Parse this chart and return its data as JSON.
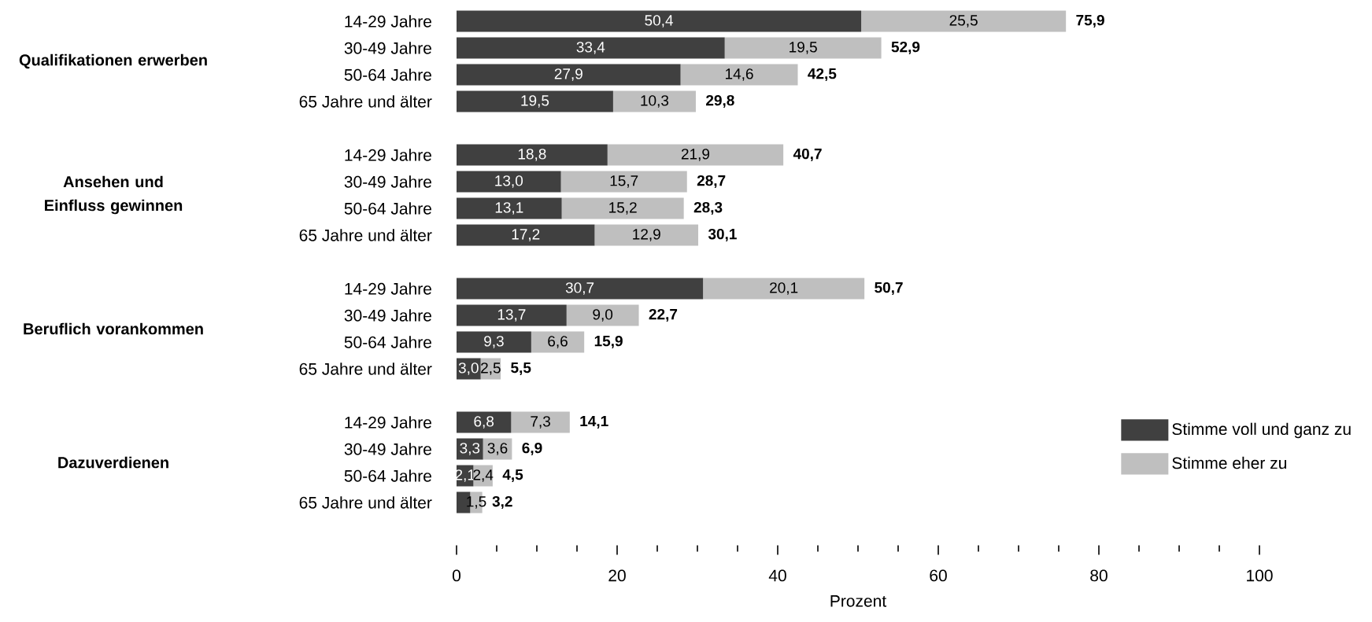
{
  "chart_data": {
    "type": "bar",
    "orientation": "horizontal",
    "stacked": true,
    "xlabel": "Prozent",
    "categories": [
      "14-29 Jahre",
      "30-49 Jahre",
      "50-64 Jahre",
      "65 Jahre und älter",
      null,
      "14-29 Jahre",
      "30-49 Jahre",
      "50-64 Jahre",
      "65 Jahre und älter",
      null,
      "14-29 Jahre",
      "30-49 Jahre",
      "50-64 Jahre",
      "65 Jahre und älter",
      null,
      "14-29 Jahre",
      "30-49 Jahre",
      "50-64 Jahre",
      "65 Jahre und älter"
    ],
    "series": [
      {
        "name": "Stimme voll und ganz zu",
        "color": "#404040",
        "values": [
          50.4,
          33.4,
          27.9,
          19.5,
          null,
          18.8,
          13.0,
          13.1,
          17.2,
          null,
          30.7,
          13.7,
          9.3,
          3.0,
          null,
          6.8,
          3.3,
          2.1,
          1.7
        ],
        "value_labels": [
          "50,4",
          "33,4",
          "27,9",
          "19,5",
          null,
          "18,8",
          "13,0",
          "13,1",
          "17,2",
          null,
          "30,7",
          "13,7",
          "9,3",
          "3,0",
          null,
          "6,8",
          "3,3",
          "2,1",
          null
        ]
      },
      {
        "name": "Stimme eher zu",
        "color": "#bfbfbf",
        "values": [
          25.5,
          19.5,
          14.6,
          10.3,
          null,
          21.9,
          15.7,
          15.2,
          12.9,
          null,
          20.1,
          9.0,
          6.6,
          2.5,
          null,
          7.3,
          3.6,
          2.4,
          1.5
        ],
        "value_labels": [
          "25,5",
          "19,5",
          "14,6",
          "10,3",
          null,
          "21,9",
          "15,7",
          "15,2",
          "12,9",
          null,
          "20,1",
          "9,0",
          "6,6",
          "2,5",
          null,
          "7,3",
          "3,6",
          "2,4",
          "1,5"
        ]
      }
    ],
    "totals": [
      "75,9",
      "52,9",
      "42,5",
      "29,8",
      null,
      "40,7",
      "28,7",
      "28,3",
      "30,1",
      null,
      "50,7",
      "22,7",
      "15,9",
      "5,5",
      null,
      "14,1",
      "6,9",
      "4,5",
      "3,2"
    ],
    "annotations": [
      "Qualifikationen erwerben",
      "Ansehen und Einfluss gewinnen",
      "Beruflich vorankommen",
      "Dazuverdienen"
    ],
    "xlim": [
      0,
      100
    ],
    "xticks": [
      0,
      20,
      40,
      60,
      80,
      100
    ],
    "legend": "bottom right",
    "grid": false
  }
}
